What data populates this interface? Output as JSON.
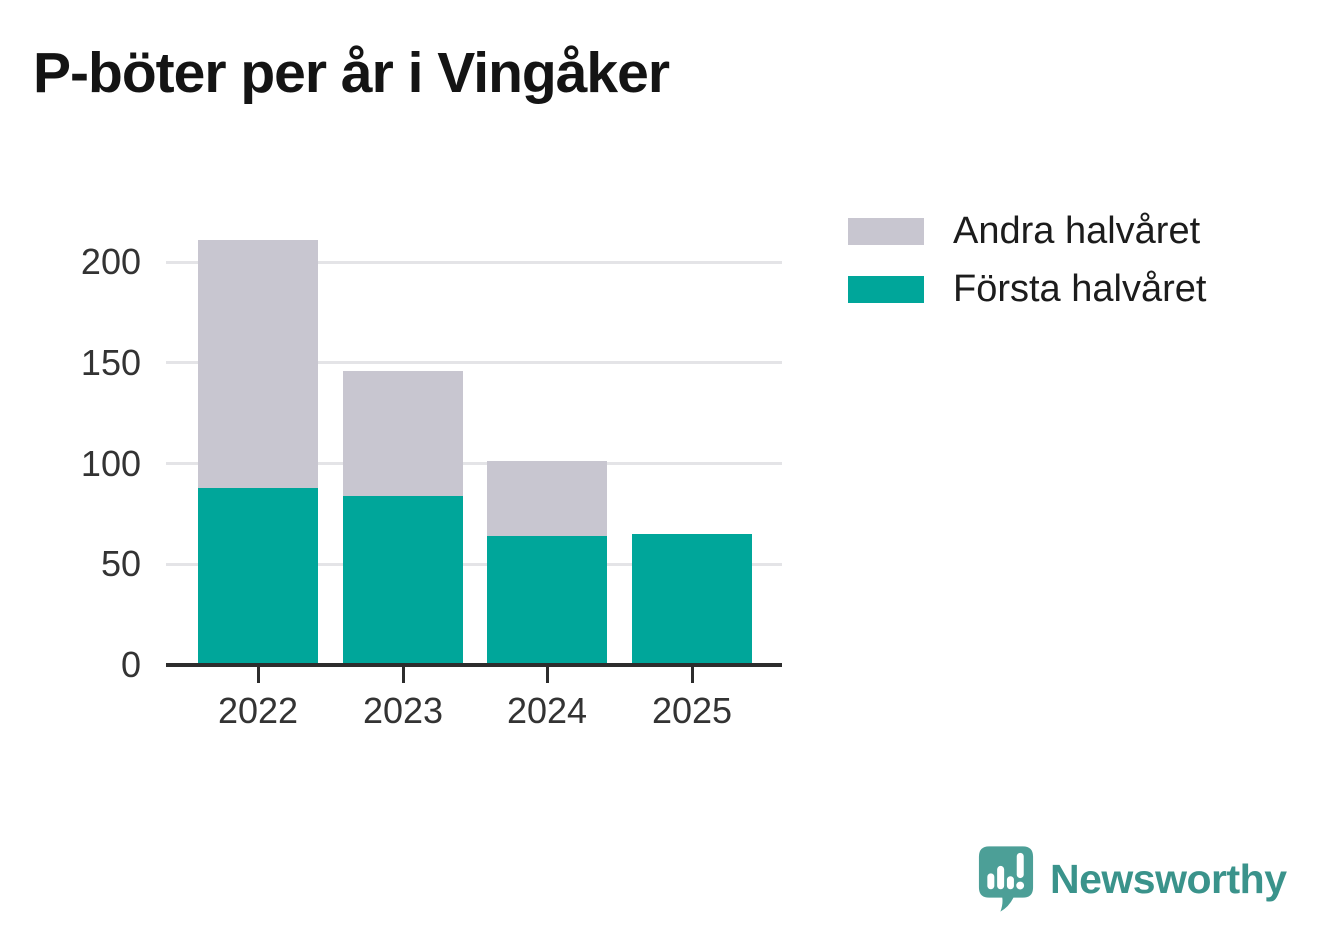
{
  "title": "P-böter per år i Vingåker",
  "legend": [
    {
      "label": "Andra halvåret",
      "color": "#c8c6d0"
    },
    {
      "label": "Första halvåret",
      "color": "#00a69a"
    }
  ],
  "chart_data": {
    "type": "bar",
    "stacked": true,
    "title": "P-böter per år i Vingåker",
    "categories": [
      "2022",
      "2023",
      "2024",
      "2025"
    ],
    "series": [
      {
        "name": "Första halvåret",
        "color": "#00a69a",
        "values": [
          88,
          84,
          64,
          65
        ]
      },
      {
        "name": "Andra halvåret",
        "color": "#c8c6d0",
        "values": [
          123,
          62,
          37,
          0
        ]
      }
    ],
    "totals": [
      211,
      146,
      101,
      65
    ],
    "xlabel": "",
    "ylabel": "",
    "yticks": [
      0,
      50,
      100,
      150,
      200
    ],
    "ylim": [
      0,
      225
    ],
    "grid": "horizontal",
    "legend_position": "right-top"
  },
  "branding": {
    "logo_text": "Newsworthy",
    "logo_text_color": "#3a938b",
    "logo_mark_color": "#4c9f97"
  },
  "colors": {
    "background": "#ffffff",
    "axis": "#2d2d2d",
    "gridline": "#e4e4e7",
    "tick_label": "#333333",
    "title_text": "#141414"
  }
}
